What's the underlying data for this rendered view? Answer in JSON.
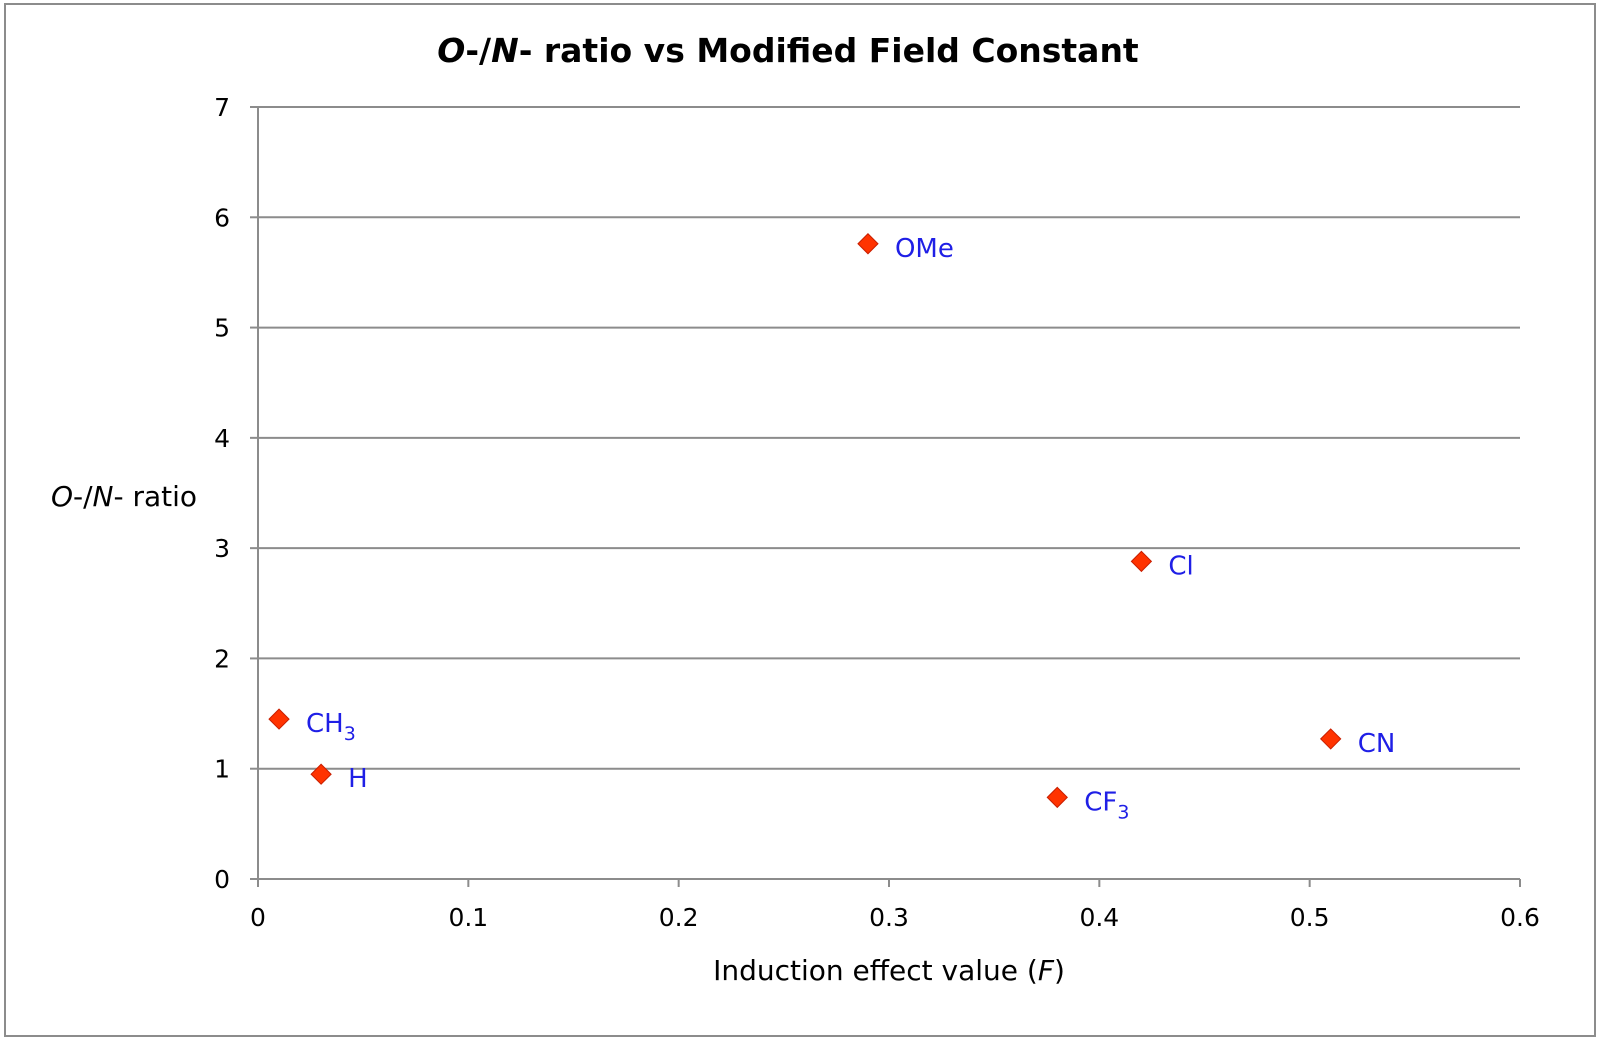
{
  "chart_data": {
    "type": "scatter",
    "title": {
      "O": "O",
      "sep": "-/",
      "N": "N",
      "rest": "- ratio vs Modified Field Constant"
    },
    "xlabel": {
      "prefix": "Induction effect value (",
      "var": "F",
      "suffix": ")"
    },
    "ylabel": {
      "O": "O",
      "sep": "-/",
      "N": "N",
      "rest": "- ratio"
    },
    "xlim": [
      0,
      0.6
    ],
    "ylim": [
      0,
      7
    ],
    "x_ticks": [
      "0",
      "0.1",
      "0.2",
      "0.3",
      "0.4",
      "0.5",
      "0.6"
    ],
    "y_ticks": [
      "0",
      "1",
      "2",
      "3",
      "4",
      "5",
      "6",
      "7"
    ],
    "grid": true,
    "legend": "none",
    "marker_color": "#ff3300",
    "label_color": "#1f1fe6",
    "points": [
      {
        "label": "CH",
        "sub": "3",
        "x": 0.01,
        "y": 1.45
      },
      {
        "label": "H",
        "sub": "",
        "x": 0.03,
        "y": 0.95
      },
      {
        "label": "OMe",
        "sub": "",
        "x": 0.29,
        "y": 5.76
      },
      {
        "label": "CF",
        "sub": "3",
        "x": 0.38,
        "y": 0.74
      },
      {
        "label": "Cl",
        "sub": "",
        "x": 0.42,
        "y": 2.88
      },
      {
        "label": "CN",
        "sub": "",
        "x": 0.51,
        "y": 1.27
      }
    ]
  }
}
